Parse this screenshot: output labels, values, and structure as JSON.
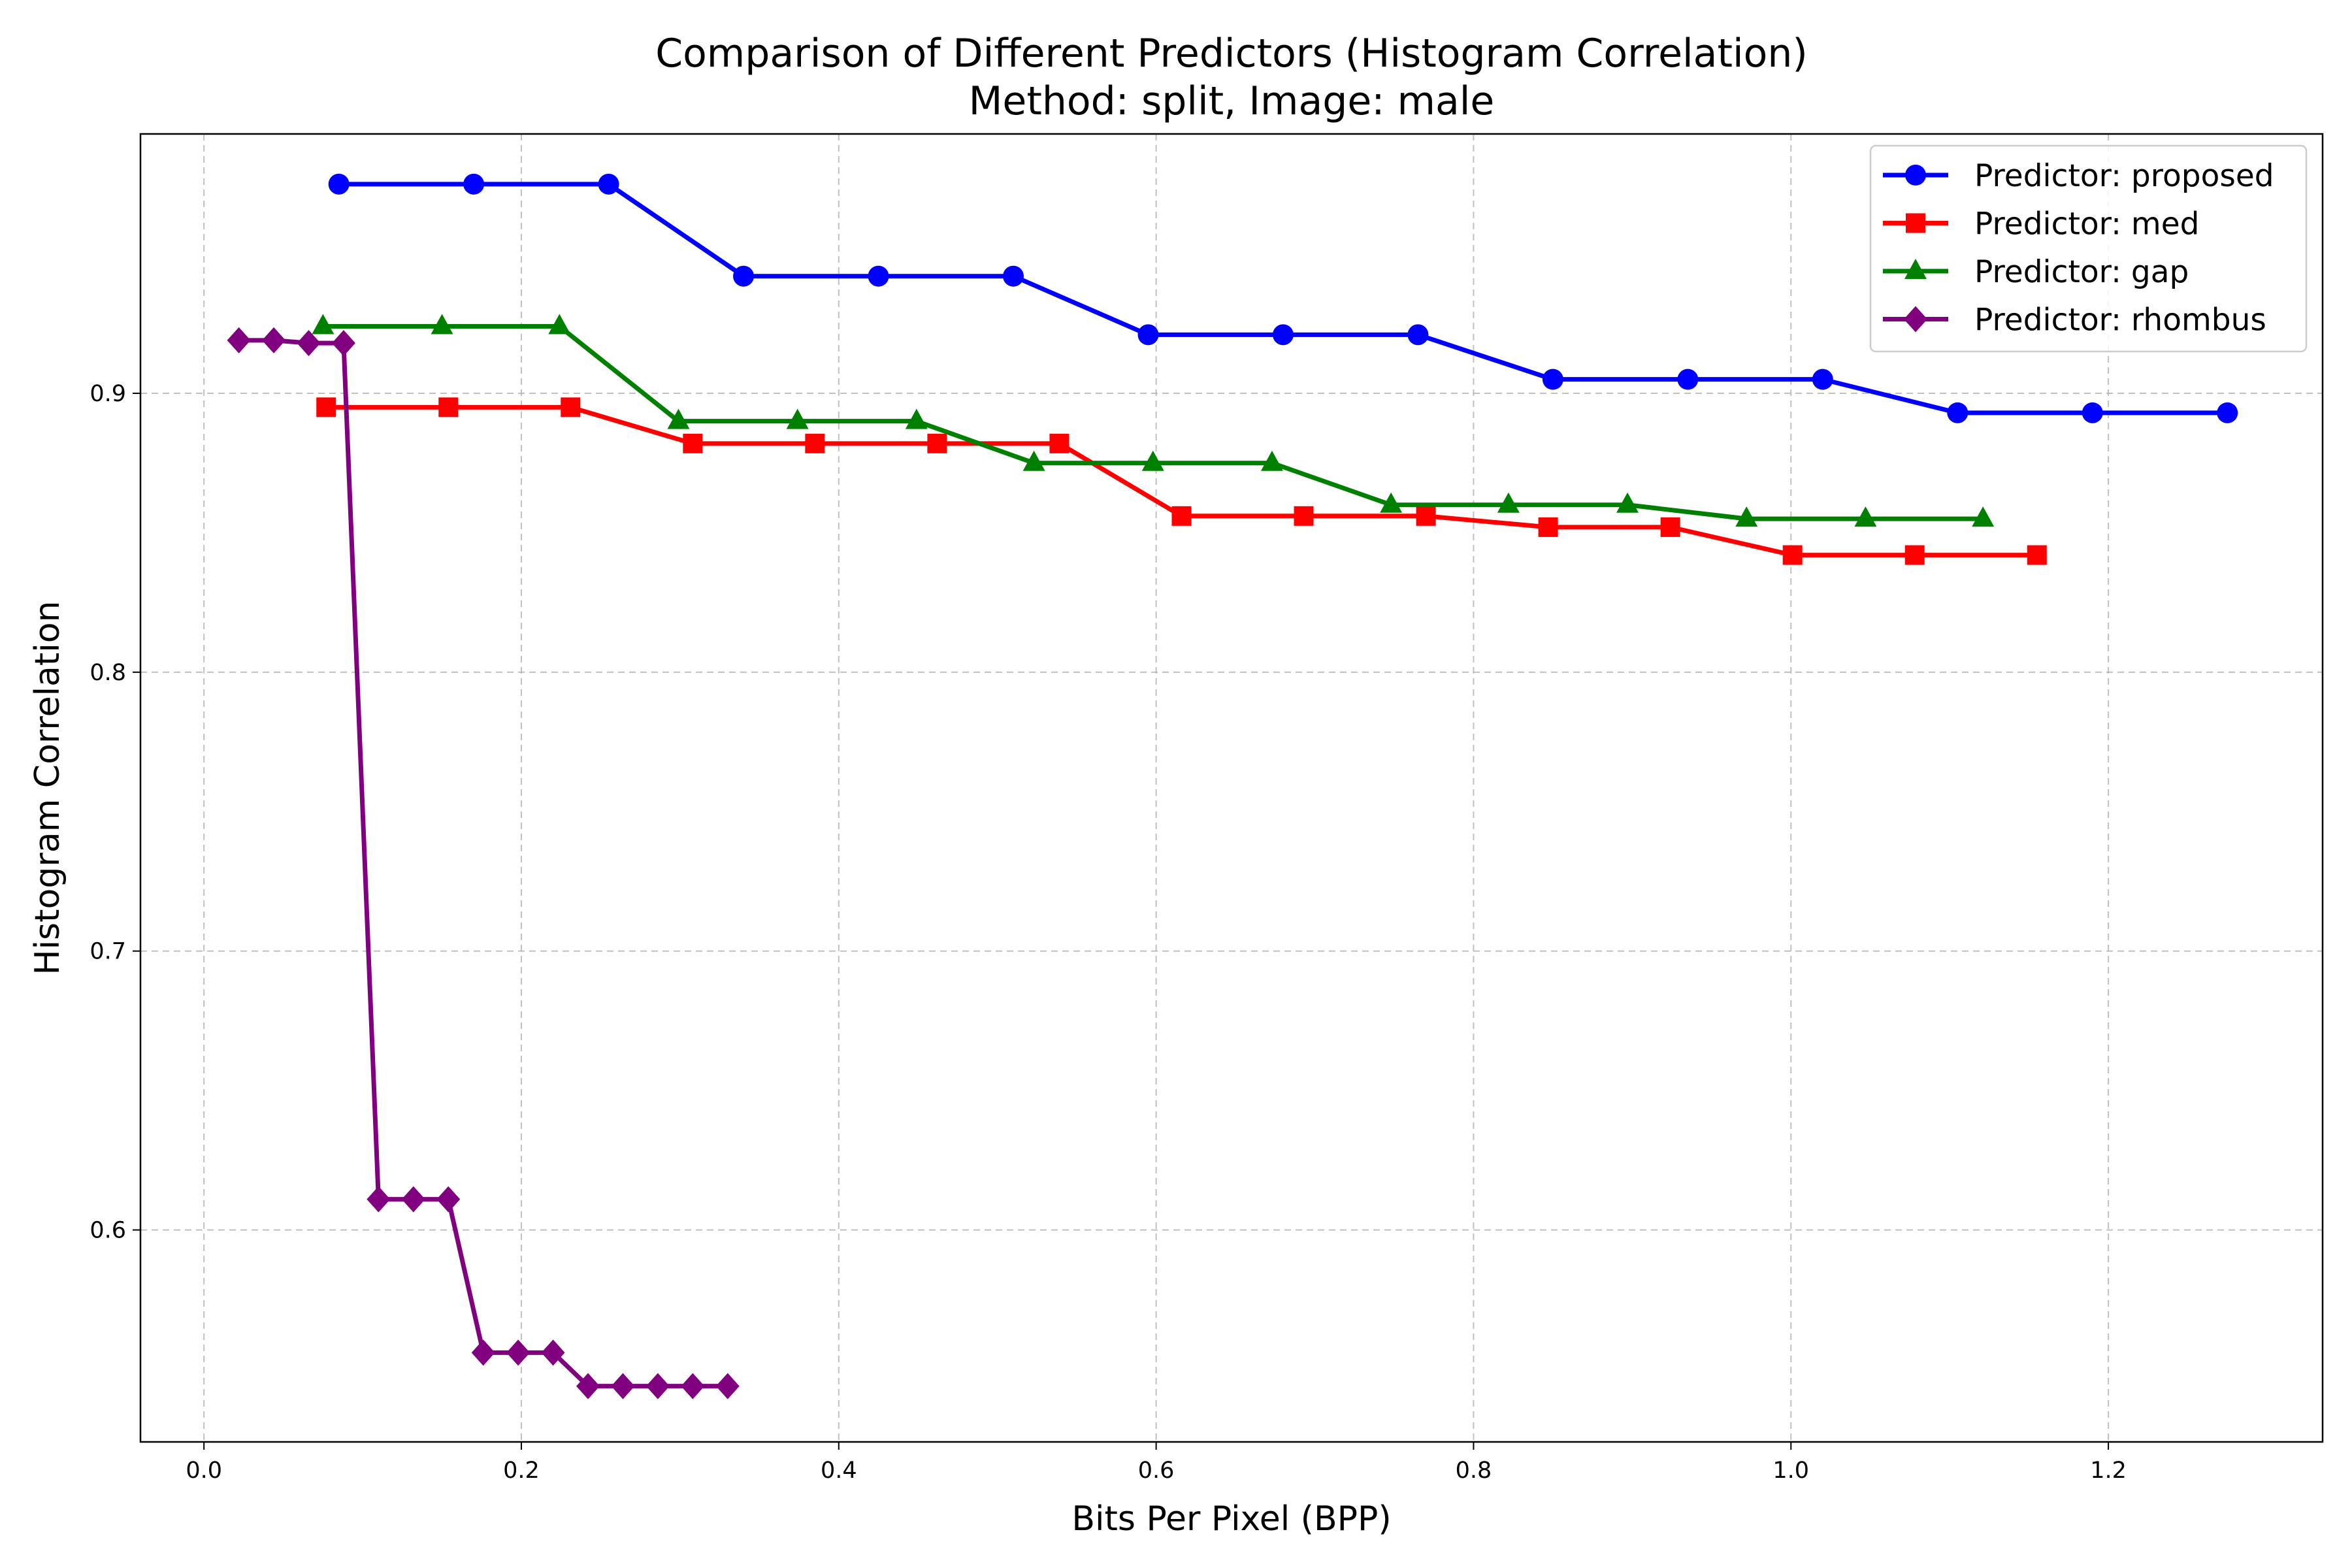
{
  "chart_data": {
    "type": "line",
    "title": "Comparison of Different Predictors (Histogram Correlation)",
    "subtitle": "Method: split, Image: male",
    "xlabel": "Bits Per Pixel (BPP)",
    "ylabel": "Histogram Correlation",
    "xlim": [
      -0.04,
      1.335
    ],
    "ylim": [
      0.524,
      0.993
    ],
    "xticks": [
      0.0,
      0.2,
      0.4,
      0.6,
      0.8,
      1.0,
      1.2
    ],
    "xtick_labels": [
      "0.0",
      "0.2",
      "0.4",
      "0.6",
      "0.8",
      "1.0",
      "1.2"
    ],
    "yticks": [
      0.6,
      0.7,
      0.8,
      0.9
    ],
    "ytick_labels": [
      "0.6",
      "0.7",
      "0.8",
      "0.9"
    ],
    "grid": true,
    "legend_position": "top-right",
    "series": [
      {
        "name": "Predictor: proposed",
        "color": "#0000ff",
        "marker": "circle",
        "x": [
          0.085,
          0.17,
          0.255,
          0.34,
          0.425,
          0.51,
          0.595,
          0.68,
          0.765,
          0.85,
          0.935,
          1.02,
          1.105,
          1.19,
          1.275
        ],
        "y": [
          0.975,
          0.975,
          0.975,
          0.942,
          0.942,
          0.942,
          0.921,
          0.921,
          0.921,
          0.905,
          0.905,
          0.905,
          0.893,
          0.893,
          0.893
        ]
      },
      {
        "name": "Predictor: med",
        "color": "#ff0000",
        "marker": "square",
        "x": [
          0.077,
          0.154,
          0.231,
          0.308,
          0.385,
          0.462,
          0.539,
          0.616,
          0.693,
          0.77,
          0.847,
          0.924,
          1.001,
          1.078,
          1.155
        ],
        "y": [
          0.895,
          0.895,
          0.895,
          0.882,
          0.882,
          0.882,
          0.882,
          0.856,
          0.856,
          0.856,
          0.852,
          0.852,
          0.842,
          0.842,
          0.842
        ]
      },
      {
        "name": "Predictor: gap",
        "color": "#008000",
        "marker": "triangle",
        "x": [
          0.075,
          0.15,
          0.224,
          0.299,
          0.374,
          0.449,
          0.523,
          0.598,
          0.673,
          0.748,
          0.822,
          0.897,
          0.972,
          1.047,
          1.121
        ],
        "y": [
          0.924,
          0.924,
          0.924,
          0.89,
          0.89,
          0.89,
          0.875,
          0.875,
          0.875,
          0.86,
          0.86,
          0.86,
          0.855,
          0.855,
          0.855
        ]
      },
      {
        "name": "Predictor: rhombus",
        "color": "#800080",
        "marker": "diamond",
        "x": [
          0.022,
          0.044,
          0.066,
          0.088,
          0.11,
          0.132,
          0.154,
          0.176,
          0.198,
          0.22,
          0.242,
          0.264,
          0.286,
          0.308,
          0.33
        ],
        "y": [
          0.919,
          0.919,
          0.918,
          0.918,
          0.611,
          0.611,
          0.611,
          0.556,
          0.556,
          0.556,
          0.544,
          0.544,
          0.544,
          0.544,
          0.544
        ]
      }
    ]
  }
}
